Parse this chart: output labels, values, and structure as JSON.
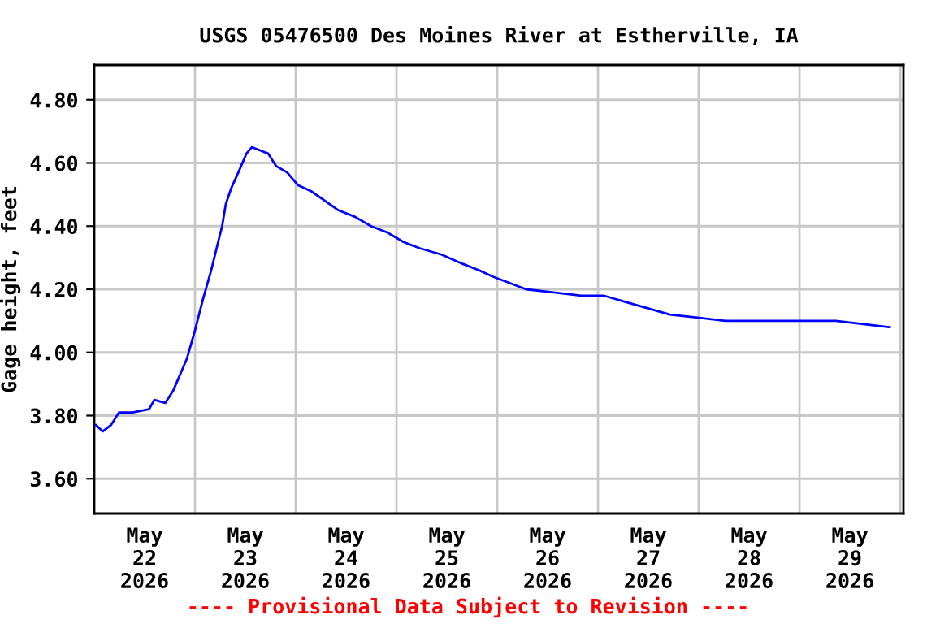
{
  "chart_data": {
    "type": "line",
    "title": "USGS 05476500 Des Moines River at Estherville, IA",
    "ylabel": "Gage height, feet",
    "annotations": [
      "---- Provisional Data Subject to Revision ----"
    ],
    "x": [
      "2026-05-22T00:23",
      "2026-05-22T02:03",
      "2026-05-22T03:59",
      "2026-05-22T05:55",
      "2026-05-22T09:10",
      "2026-05-22T13:03",
      "2026-05-22T14:19",
      "2026-05-22T16:55",
      "2026-05-22T18:51",
      "2026-05-22T20:08",
      "2026-05-22T22:04",
      "2026-05-23T00:00",
      "2026-05-23T01:56",
      "2026-05-23T03:52",
      "2026-05-23T05:09",
      "2026-05-23T06:28",
      "2026-05-23T07:21",
      "2026-05-23T08:38",
      "2026-05-23T10:20",
      "2026-05-23T12:16",
      "2026-05-23T13:33",
      "2026-05-23T15:29",
      "2026-05-23T17:25",
      "2026-05-23T19:21",
      "2026-05-23T21:57",
      "2026-05-24T00:30",
      "2026-05-24T03:45",
      "2026-05-24T06:58",
      "2026-05-24T10:11",
      "2026-05-24T14:03",
      "2026-05-24T17:55",
      "2026-05-24T21:47",
      "2026-05-25T01:40",
      "2026-05-25T05:32",
      "2026-05-25T10:43",
      "2026-05-25T15:52",
      "2026-05-25T19:44",
      "2026-05-25T23:00",
      "2026-05-26T02:56",
      "2026-05-26T06:53",
      "2026-05-26T13:28",
      "2026-05-26T20:03",
      "2026-05-27T01:19",
      "2026-05-27T06:35",
      "2026-05-27T11:51",
      "2026-05-27T17:07",
      "2026-05-27T23:44",
      "2026-05-28T06:19",
      "2026-05-28T12:54",
      "2026-05-28T19:29",
      "2026-05-29T02:04",
      "2026-05-29T08:39",
      "2026-05-29T15:14",
      "2026-05-29T21:30"
    ],
    "series": [
      {
        "color": "#0000ff",
        "values": [
          3.77,
          3.75,
          3.77,
          3.81,
          3.81,
          3.82,
          3.85,
          3.84,
          3.88,
          3.92,
          3.98,
          4.07,
          4.17,
          4.26,
          4.33,
          4.4,
          4.47,
          4.52,
          4.57,
          4.63,
          4.65,
          4.64,
          4.63,
          4.59,
          4.57,
          4.53,
          4.51,
          4.48,
          4.45,
          4.43,
          4.4,
          4.38,
          4.35,
          4.33,
          4.31,
          4.28,
          4.26,
          4.24,
          4.22,
          4.2,
          4.19,
          4.18,
          4.18,
          4.16,
          4.14,
          4.12,
          4.11,
          4.1,
          4.1,
          4.1,
          4.1,
          4.1,
          4.09,
          4.08
        ]
      }
    ],
    "xlim": [
      "2026-05-22T00:00",
      "2026-05-30T00:46"
    ],
    "xticks": [
      {
        "value": "2026-05-22T12:00",
        "label": "May\n22\n2026"
      },
      {
        "value": "2026-05-23T00:00",
        "label": null
      },
      {
        "value": "2026-05-23T12:00",
        "label": "May\n23\n2026"
      },
      {
        "value": "2026-05-24T00:00",
        "label": null
      },
      {
        "value": "2026-05-24T12:00",
        "label": "May\n24\n2026"
      },
      {
        "value": "2026-05-25T00:00",
        "label": null
      },
      {
        "value": "2026-05-25T12:00",
        "label": "May\n25\n2026"
      },
      {
        "value": "2026-05-26T00:00",
        "label": null
      },
      {
        "value": "2026-05-26T12:00",
        "label": "May\n26\n2026"
      },
      {
        "value": "2026-05-27T00:00",
        "label": null
      },
      {
        "value": "2026-05-27T12:00",
        "label": "May\n27\n2026"
      },
      {
        "value": "2026-05-28T00:00",
        "label": null
      },
      {
        "value": "2026-05-28T12:00",
        "label": "May\n28\n2026"
      },
      {
        "value": "2026-05-29T00:00",
        "label": null
      },
      {
        "value": "2026-05-29T12:00",
        "label": "May\n29\n2026"
      },
      {
        "value": "2026-05-30T00:00",
        "label": null
      }
    ],
    "ylim": [
      3.49,
      4.91
    ],
    "yticks": [
      {
        "value": 3.6,
        "label": "3.60"
      },
      {
        "value": 3.8,
        "label": "3.80"
      },
      {
        "value": 4.0,
        "label": "4.00"
      },
      {
        "value": 4.2,
        "label": "4.20"
      },
      {
        "value": 4.4,
        "label": "4.40"
      },
      {
        "value": 4.6,
        "label": "4.60"
      },
      {
        "value": 4.8,
        "label": "4.80"
      }
    ],
    "grid": true,
    "line_style": "solid"
  }
}
